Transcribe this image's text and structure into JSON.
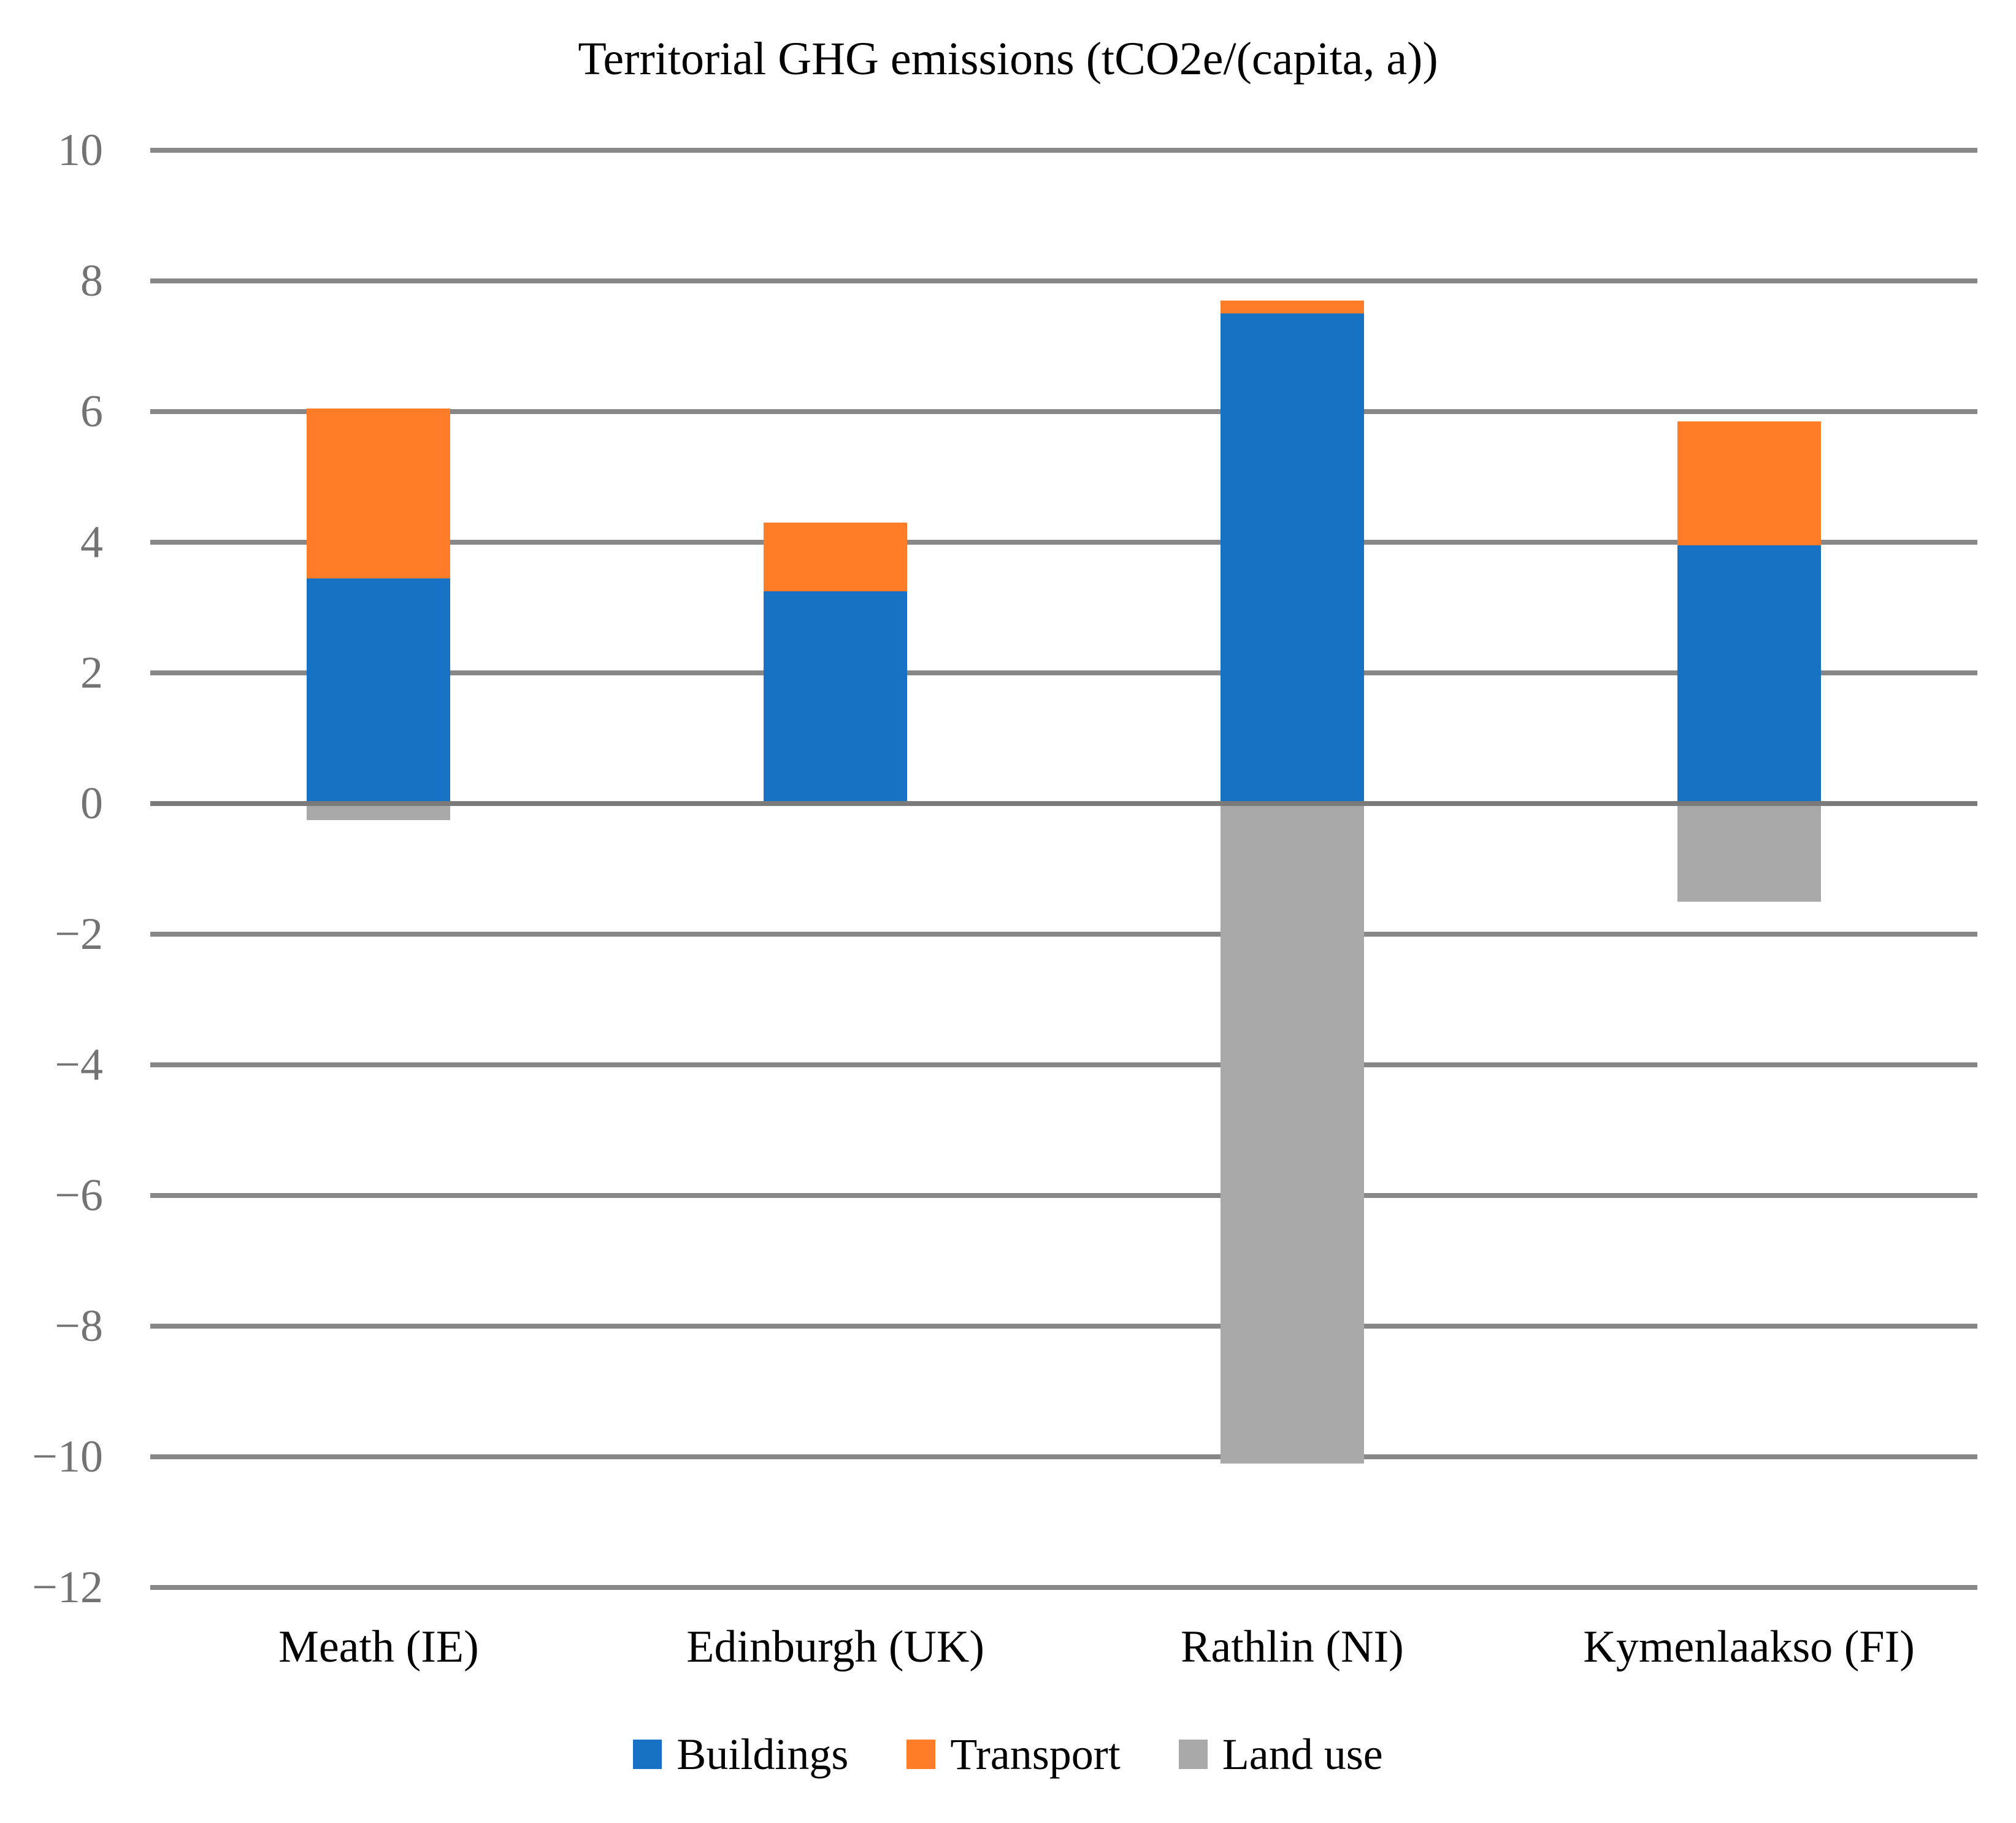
{
  "chart_data": {
    "type": "bar",
    "stacked": true,
    "title": "Territorial GHG emissions (tCO2e/(capita, a))",
    "categories": [
      "Meath (IE)",
      "Edinburgh (UK)",
      "Rathlin (NI)",
      "Kymenlaakso (FI)"
    ],
    "series": [
      {
        "name": "Buildings",
        "color": "#1772C6",
        "values": [
          3.45,
          3.25,
          7.5,
          3.95
        ]
      },
      {
        "name": "Transport",
        "color": "#FF7D28",
        "values": [
          2.6,
          1.05,
          0.2,
          1.9
        ]
      },
      {
        "name": "Land use",
        "color": "#A9A9A9",
        "values": [
          -0.25,
          0,
          -10.1,
          -1.5
        ]
      }
    ],
    "ylabel": "",
    "xlabel": "",
    "ylim": [
      -12,
      10
    ],
    "ytick_step": 2,
    "yticks": [
      10,
      8,
      6,
      4,
      2,
      0,
      -2,
      -4,
      -6,
      -8,
      -10,
      -12
    ],
    "grid": true,
    "legend_position": "bottom",
    "colors": {
      "gridline": "#878787",
      "zero_axis_line": "#7B7B7B",
      "tick_label": "#737373",
      "text": "#000000",
      "background": "#FFFFFF"
    }
  }
}
